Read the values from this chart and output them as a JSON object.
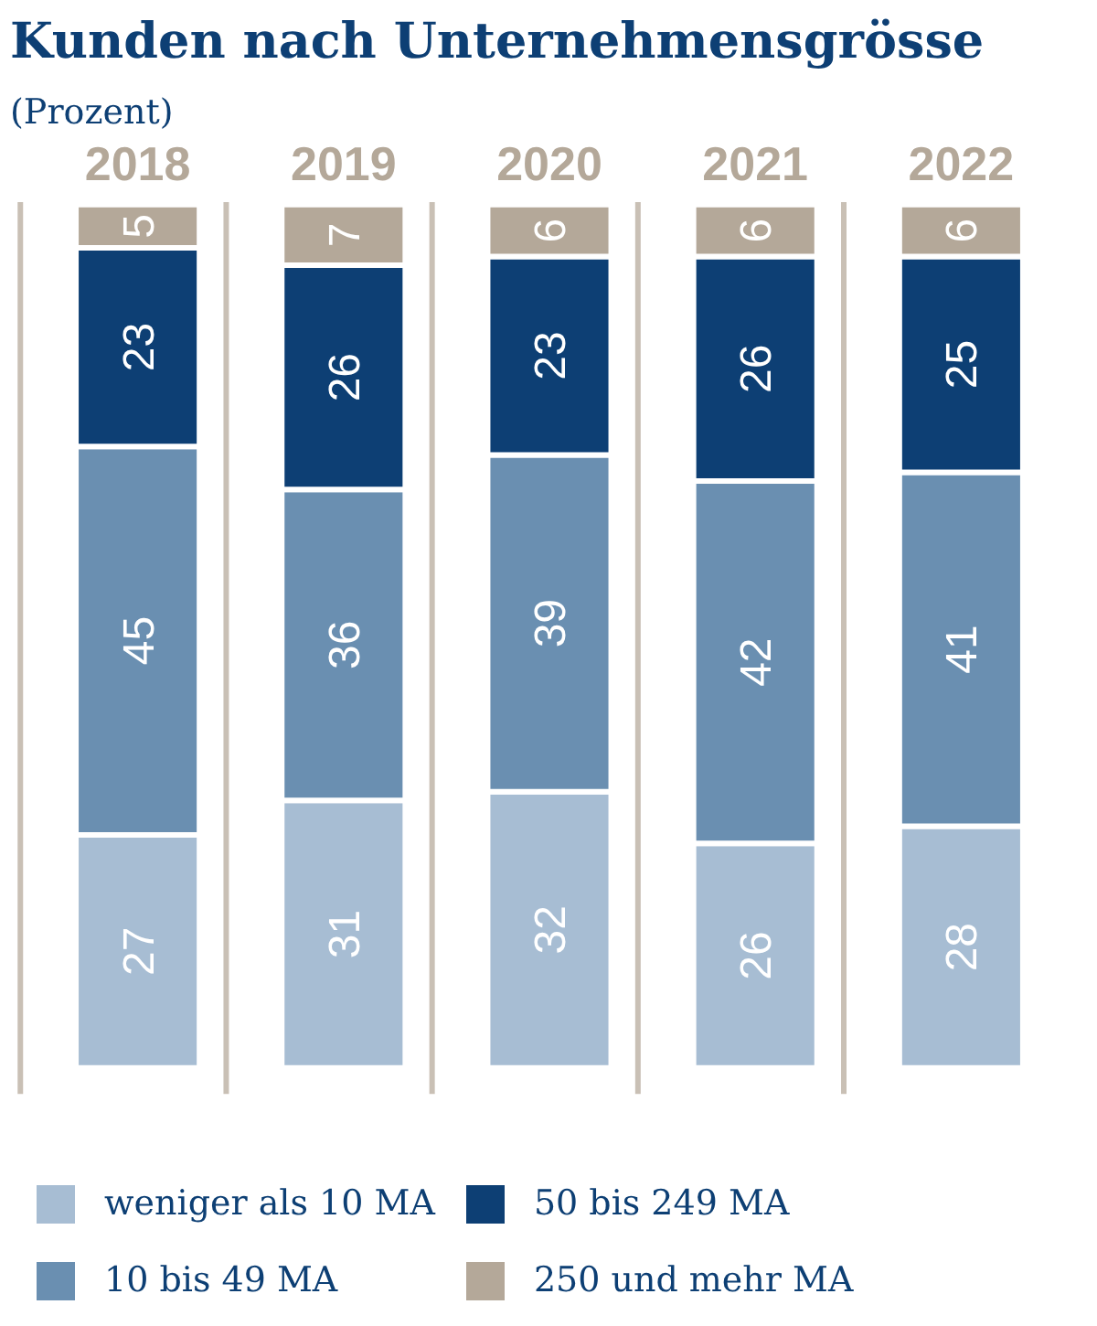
{
  "chart_data": {
    "type": "bar",
    "title": "Kunden nach Unternehmensgrösse",
    "subtitle": "(Prozent)",
    "stacked": true,
    "data_labels": true,
    "legend": "bottom",
    "categories": [
      "2018",
      "2019",
      "2020",
      "2021",
      "2022"
    ],
    "series": [
      {
        "name": "weniger als 10 MA",
        "color": "#a7bdd3",
        "values": [
          27,
          31,
          32,
          26,
          28
        ]
      },
      {
        "name": "10 bis 49 MA",
        "color": "#6a8fb1",
        "values": [
          45,
          36,
          39,
          42,
          41
        ]
      },
      {
        "name": "50 bis 249 MA",
        "color": "#0d3f74",
        "values": [
          23,
          26,
          23,
          26,
          25
        ]
      },
      {
        "name": "250 und mehr MA",
        "color": "#b4a899",
        "values": [
          5,
          7,
          6,
          6,
          6
        ]
      }
    ]
  }
}
